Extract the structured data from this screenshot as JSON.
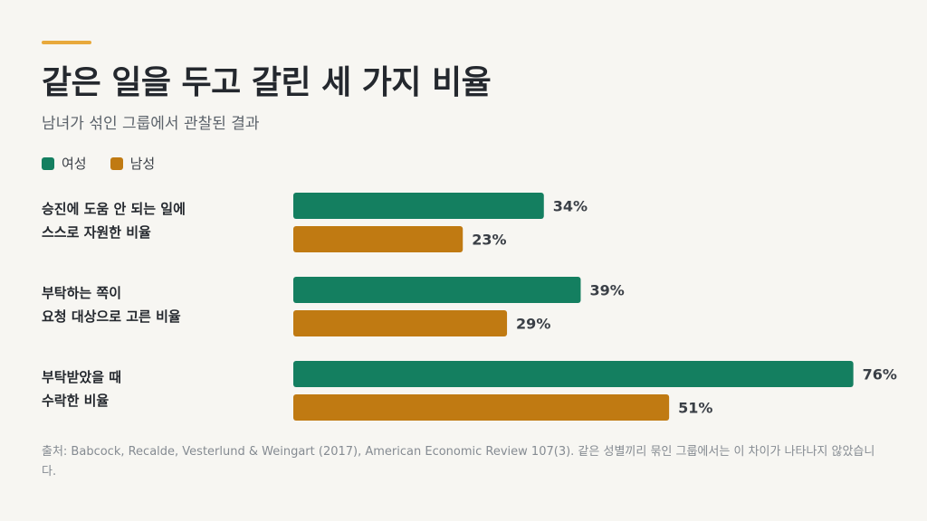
{
  "header": {
    "title": "같은 일을 두고 갈린 세 가지 비율",
    "subtitle": "남녀가 섞인 그룹에서 관찰된 결과"
  },
  "legend": {
    "female": "여성",
    "male": "남성"
  },
  "colors": {
    "female": "#147f60",
    "male": "#c07a12",
    "accent": "#e8a93c"
  },
  "chart_data": {
    "type": "bar",
    "orientation": "horizontal",
    "title": "같은 일을 두고 갈린 세 가지 비율",
    "subtitle": "남녀가 섞인 그룹에서 관찰된 결과",
    "categories": [
      [
        "승진에 도움 안 되는 일에",
        "스스로 자원한 비율"
      ],
      [
        "부탁하는 쪽이",
        "요청 대상으로 고른 비율"
      ],
      [
        "부탁받았을 때",
        "수락한 비율"
      ]
    ],
    "series": [
      {
        "name": "여성",
        "values": [
          34,
          39,
          76
        ],
        "labels": [
          "34%",
          "39%",
          "76%"
        ]
      },
      {
        "name": "남성",
        "values": [
          23,
          29,
          51
        ],
        "labels": [
          "23%",
          "29%",
          "51%"
        ]
      }
    ],
    "xlim": [
      0,
      100
    ],
    "grid": false,
    "legend_position": "top-left"
  },
  "source": "출처: Babcock, Recalde, Vesterlund & Weingart (2017), American Economic Review 107(3). 같은 성별끼리 묶인 그룹에서는 이 차이가 나타나지 않았습니다."
}
